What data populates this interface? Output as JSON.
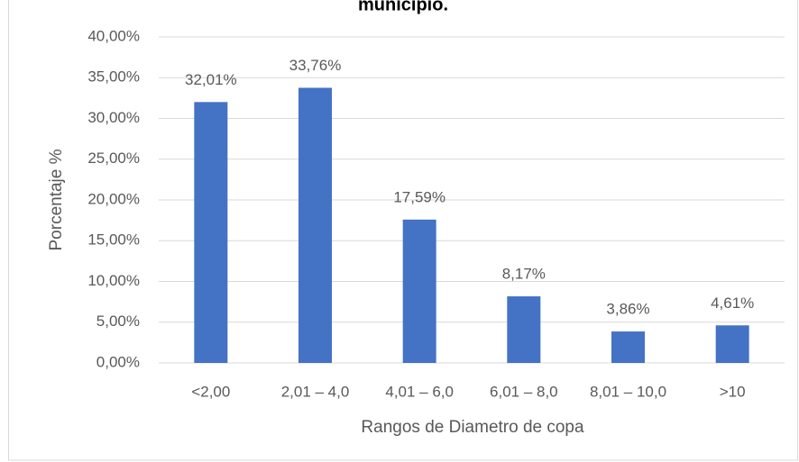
{
  "chart_data": {
    "type": "bar",
    "title": "municipio.",
    "categories": [
      "<2,00",
      "2,01 – 4,0",
      "4,01 – 6,0",
      "6,01 – 8,0",
      "8,01 – 10,0",
      ">10"
    ],
    "values": [
      32.01,
      33.76,
      17.59,
      8.17,
      3.86,
      4.61
    ],
    "value_labels": [
      "32,01%",
      "33,76%",
      "17,59%",
      "8,17%",
      "3,86%",
      "4,61%"
    ],
    "color": "#4472c4",
    "x_label": "Rangos de Diametro de copa",
    "y_label": "Porcentaje %",
    "ylim": [
      0,
      40
    ],
    "yticks": [
      {
        "value": 0,
        "label": "0,00%"
      },
      {
        "value": 5,
        "label": "5,00%"
      },
      {
        "value": 10,
        "label": "10,00%"
      },
      {
        "value": 15,
        "label": "15,00%"
      },
      {
        "value": 20,
        "label": "20,00%"
      },
      {
        "value": 25,
        "label": "25,00%"
      },
      {
        "value": 30,
        "label": "30,00%"
      },
      {
        "value": 35,
        "label": "35,00%"
      },
      {
        "value": 40,
        "label": "40,00%"
      }
    ],
    "grid": true
  }
}
